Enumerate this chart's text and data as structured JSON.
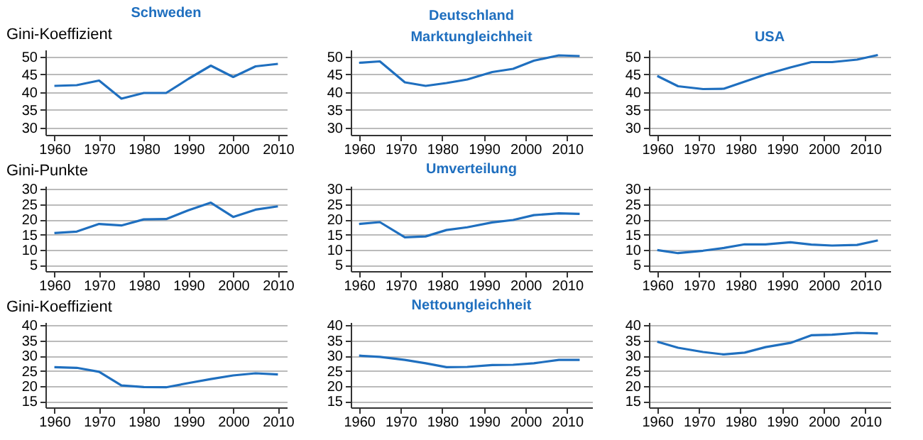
{
  "chart_data": [
    {
      "type": "line",
      "title": "Schweden",
      "ylabel": "Gini-Koeffizient",
      "x": [
        1960,
        1965,
        1970,
        1975,
        1980,
        1985,
        1990,
        1995,
        2000,
        2005,
        2010
      ],
      "xlim": [
        1958,
        2012
      ],
      "xticks": [
        1960,
        1970,
        1980,
        1990,
        2000,
        2010
      ],
      "ylim": [
        28,
        52
      ],
      "yticks": [
        30,
        35,
        40,
        45,
        50
      ],
      "grid": "y",
      "series": [
        {
          "color": "#1f6fbf",
          "values": [
            41.8,
            42,
            43.3,
            38.2,
            39.8,
            39.8,
            43.8,
            47.5,
            44.3,
            47.3,
            48
          ]
        }
      ]
    },
    {
      "type": "line",
      "title": "Deutschland",
      "subtitle": "Marktungleichheit",
      "x": [
        1960,
        1965,
        1971,
        1976,
        1981,
        1986,
        1992,
        1997,
        2002,
        2008,
        2013
      ],
      "xlim": [
        1958,
        2016
      ],
      "xticks": [
        1960,
        1970,
        1980,
        1990,
        2000,
        2010
      ],
      "ylim": [
        28,
        52
      ],
      "yticks": [
        30,
        35,
        40,
        45,
        50
      ],
      "grid": "y",
      "series": [
        {
          "color": "#1f6fbf",
          "values": [
            48.3,
            48.7,
            42.8,
            41.8,
            42.6,
            43.6,
            45.7,
            46.6,
            48.9,
            50.4,
            50.2
          ]
        }
      ]
    },
    {
      "type": "line",
      "title": "USA",
      "x": [
        1960,
        1965,
        1971,
        1976,
        1981,
        1986,
        1992,
        1997,
        2002,
        2008,
        2013
      ],
      "xlim": [
        1958,
        2016
      ],
      "xticks": [
        1960,
        1970,
        1980,
        1990,
        2000,
        2010
      ],
      "ylim": [
        28,
        52
      ],
      "yticks": [
        30,
        35,
        40,
        45,
        50
      ],
      "grid": "y",
      "series": [
        {
          "color": "#1f6fbf",
          "values": [
            44.6,
            41.7,
            40.9,
            41.0,
            43,
            45,
            47,
            48.5,
            48.5,
            49.2,
            50.5
          ]
        }
      ]
    },
    {
      "type": "line",
      "ylabel": "Gini-Punkte",
      "x": [
        1960,
        1965,
        1970,
        1975,
        1980,
        1985,
        1990,
        1995,
        2000,
        2005,
        2010
      ],
      "xlim": [
        1958,
        2012
      ],
      "xticks": [
        1960,
        1970,
        1980,
        1990,
        2000,
        2010
      ],
      "ylim": [
        3,
        31
      ],
      "yticks": [
        5,
        10,
        15,
        20,
        25,
        30
      ],
      "grid": "y",
      "series": [
        {
          "color": "#1f6fbf",
          "values": [
            15.5,
            16,
            18.5,
            18,
            20,
            20.1,
            23,
            25.5,
            20.8,
            23.2,
            24.3
          ]
        }
      ]
    },
    {
      "type": "line",
      "title": "Umverteilung",
      "x": [
        1960,
        1965,
        1971,
        1976,
        1981,
        1986,
        1992,
        1997,
        2002,
        2008,
        2013
      ],
      "xlim": [
        1958,
        2016
      ],
      "xticks": [
        1960,
        1970,
        1980,
        1990,
        2000,
        2010
      ],
      "ylim": [
        3,
        31
      ],
      "yticks": [
        5,
        10,
        15,
        20,
        25,
        30
      ],
      "grid": "y",
      "series": [
        {
          "color": "#1f6fbf",
          "values": [
            18.5,
            19.1,
            14.1,
            14.4,
            16.5,
            17.4,
            19,
            19.8,
            21.4,
            22,
            21.8
          ]
        }
      ]
    },
    {
      "type": "line",
      "x": [
        1960,
        1965,
        1971,
        1976,
        1981,
        1986,
        1992,
        1997,
        2002,
        2008,
        2013
      ],
      "xlim": [
        1958,
        2016
      ],
      "xticks": [
        1960,
        1970,
        1980,
        1990,
        2000,
        2010
      ],
      "ylim": [
        3,
        31
      ],
      "yticks": [
        5,
        10,
        15,
        20,
        25,
        30
      ],
      "grid": "y",
      "series": [
        {
          "color": "#1f6fbf",
          "values": [
            9.9,
            8.9,
            9.7,
            10.6,
            11.8,
            11.8,
            12.5,
            11.7,
            11.4,
            11.6,
            13.1
          ]
        }
      ]
    },
    {
      "type": "line",
      "ylabel": "Gini-Koeffizient",
      "x": [
        1960,
        1965,
        1970,
        1975,
        1980,
        1985,
        1990,
        1995,
        2000,
        2005,
        2010
      ],
      "xlim": [
        1958,
        2012
      ],
      "xticks": [
        1960,
        1970,
        1980,
        1990,
        2000,
        2010
      ],
      "ylim": [
        13,
        41
      ],
      "yticks": [
        15,
        20,
        25,
        30,
        35,
        40
      ],
      "grid": "y",
      "series": [
        {
          "color": "#1f6fbf",
          "values": [
            26.2,
            26,
            24.7,
            20.2,
            19.7,
            19.6,
            21,
            22.3,
            23.5,
            24.2,
            23.8
          ]
        }
      ]
    },
    {
      "type": "line",
      "title": "Nettoungleichheit",
      "x": [
        1960,
        1965,
        1971,
        1976,
        1981,
        1986,
        1992,
        1997,
        2002,
        2008,
        2013
      ],
      "xlim": [
        1958,
        2016
      ],
      "xticks": [
        1960,
        1970,
        1980,
        1990,
        2000,
        2010
      ],
      "ylim": [
        13,
        41
      ],
      "yticks": [
        15,
        20,
        25,
        30,
        35,
        40
      ],
      "grid": "y",
      "series": [
        {
          "color": "#1f6fbf",
          "values": [
            30,
            29.6,
            28.6,
            27.5,
            26.2,
            26.3,
            26.9,
            27,
            27.5,
            28.6,
            28.6
          ]
        }
      ]
    },
    {
      "type": "line",
      "x": [
        1960,
        1965,
        1971,
        1976,
        1981,
        1986,
        1992,
        1997,
        2002,
        2008,
        2013
      ],
      "xlim": [
        1958,
        2016
      ],
      "xticks": [
        1960,
        1970,
        1980,
        1990,
        2000,
        2010
      ],
      "ylim": [
        13,
        41
      ],
      "yticks": [
        15,
        20,
        25,
        30,
        35,
        40
      ],
      "grid": "y",
      "series": [
        {
          "color": "#1f6fbf",
          "values": [
            34.6,
            32.6,
            31.2,
            30.4,
            31,
            32.8,
            34.2,
            36.7,
            36.9,
            37.5,
            37.3
          ]
        }
      ]
    }
  ]
}
